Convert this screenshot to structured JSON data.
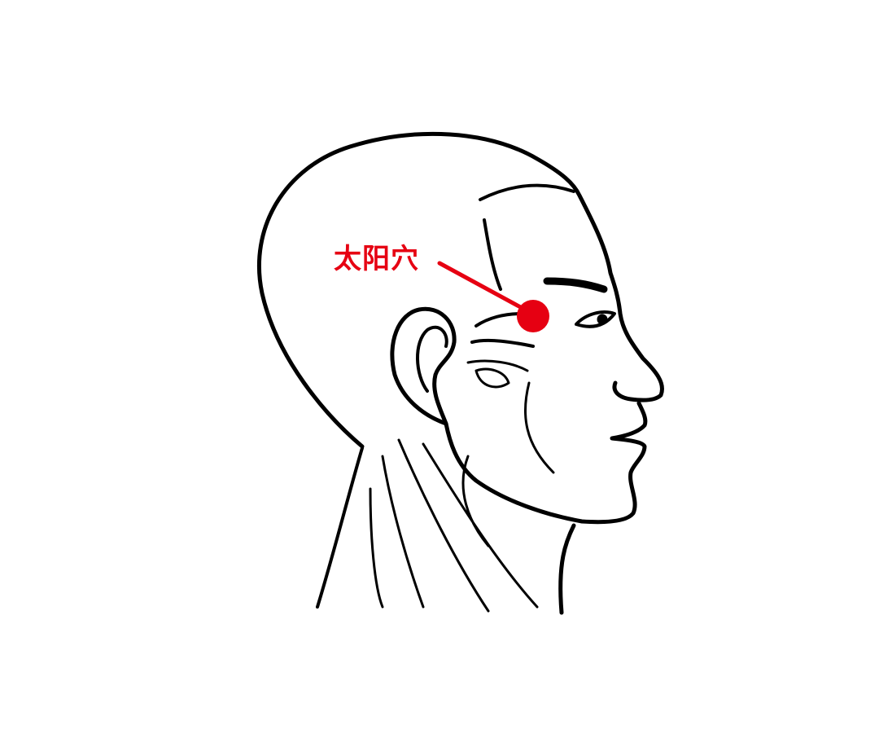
{
  "diagram": {
    "acupoint_label": "太阳穴",
    "marker_color": "#e60012",
    "line_color": "#000000"
  }
}
